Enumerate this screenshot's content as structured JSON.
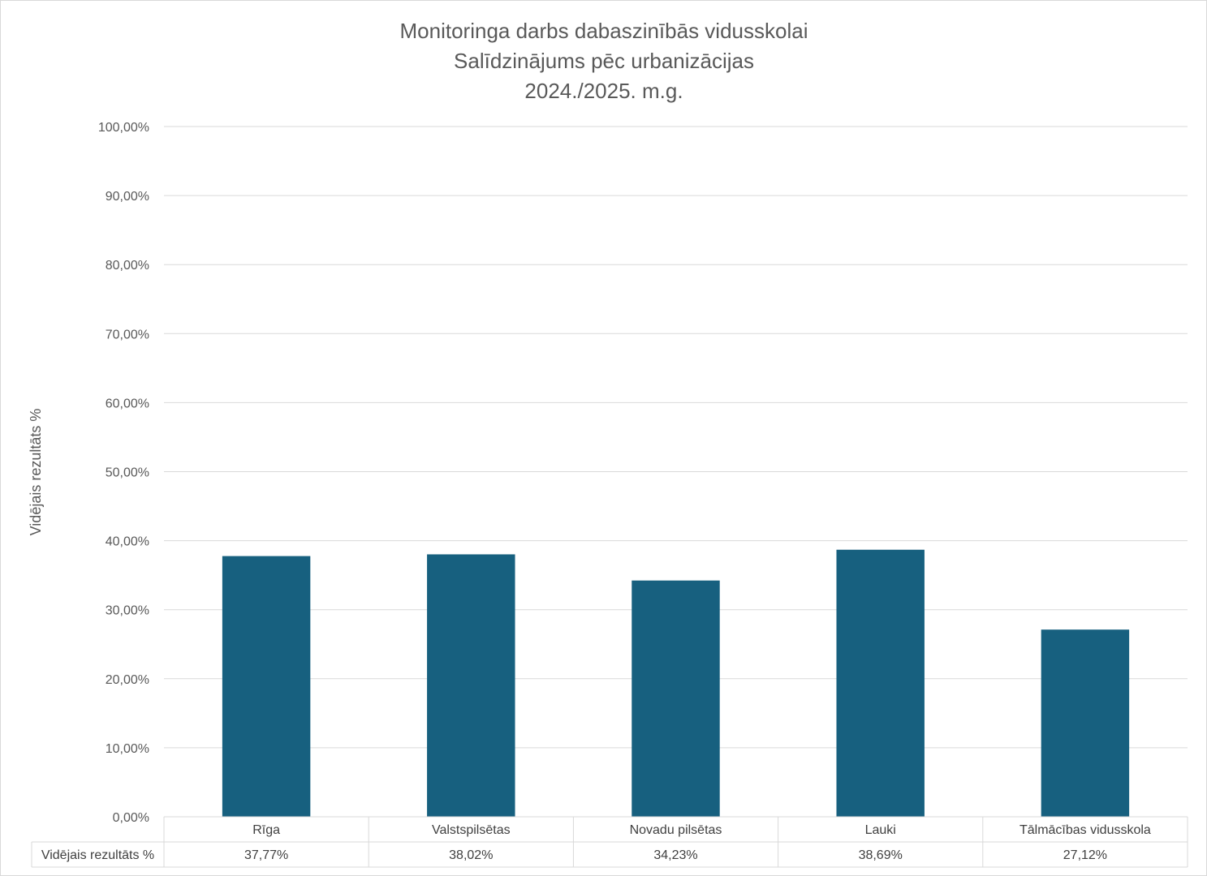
{
  "chart_data": {
    "type": "bar",
    "title": [
      "Monitoringa darbs dabaszinībās vidusskolai",
      "Salīdzinājums pēc urbanizācijas",
      "2024./2025. m.g."
    ],
    "ylabel": "Vidējais rezultāts %",
    "ylim": [
      0,
      100
    ],
    "yticks": [
      0,
      10,
      20,
      30,
      40,
      50,
      60,
      70,
      80,
      90,
      100
    ],
    "ytick_labels": [
      "0,00%",
      "10,00%",
      "20,00%",
      "30,00%",
      "40,00%",
      "50,00%",
      "60,00%",
      "70,00%",
      "80,00%",
      "90,00%",
      "100,00%"
    ],
    "grid": true,
    "categories": [
      "Rīga",
      "Valstspilsētas",
      "Novadu pilsētas",
      "Lauki",
      "Tālmācības vidusskola"
    ],
    "series": [
      {
        "name": "Vidējais rezultāts %",
        "values": [
          37.77,
          38.02,
          34.23,
          38.69,
          27.12
        ],
        "value_labels": [
          "37,77%",
          "38,02%",
          "34,23%",
          "38,69%",
          "27,12%"
        ],
        "color": "#17607f"
      }
    ],
    "data_table": true
  }
}
